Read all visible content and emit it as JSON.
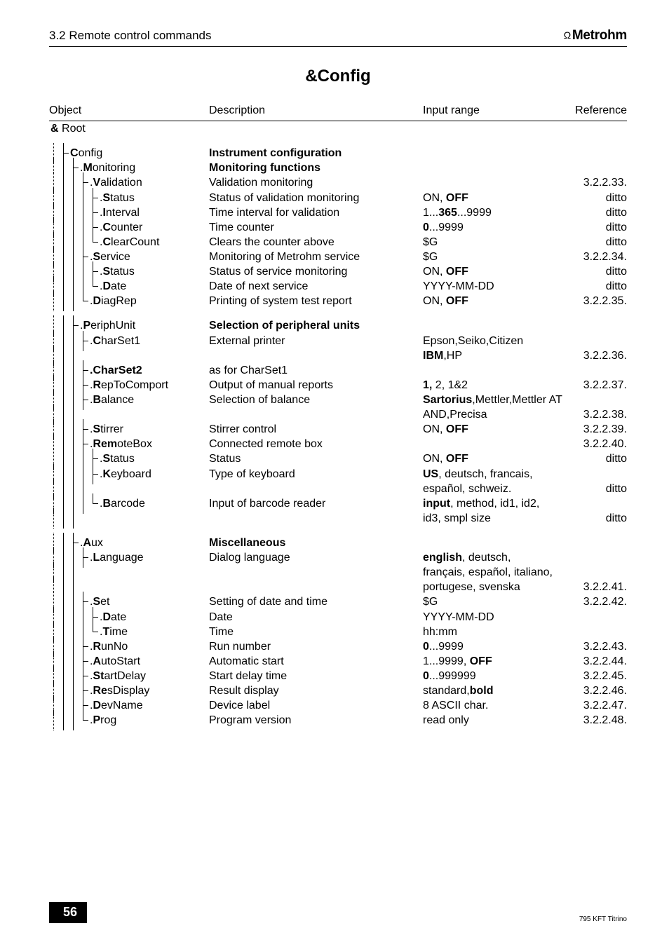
{
  "header": {
    "section": "3.2 Remote control commands",
    "brand_symbol": "Ω",
    "brand": "Metrohm"
  },
  "title": "&Config",
  "columns": {
    "object": "Object",
    "description": "Description",
    "input": "Input range",
    "reference": "Reference"
  },
  "rows": [
    {
      "type": "root",
      "object_html": "<b>&</b>  Root"
    },
    {
      "type": "gap"
    },
    {
      "tree": [
        "d",
        "t"
      ],
      "obj_html": "<b>C</b>onfig",
      "desc_html": "<b>Instrument configuration</b>"
    },
    {
      "tree": [
        "d",
        "v",
        "t"
      ],
      "obj_html": ".<b>M</b>onitoring",
      "desc_html": "<b>Monitoring functions</b>"
    },
    {
      "tree": [
        "d",
        "v",
        "v",
        "t"
      ],
      "obj_html": ".<b>V</b>alidation",
      "desc": "Validation monitoring",
      "ref": "3.2.2.33."
    },
    {
      "tree": [
        "d",
        "v",
        "v",
        "v",
        "t"
      ],
      "obj_html": ".<b>S</b>tatus",
      "desc": "Status of validation monitoring",
      "input_html": "ON, <b>OFF</b>",
      "ref": "ditto"
    },
    {
      "tree": [
        "d",
        "v",
        "v",
        "v",
        "t"
      ],
      "obj_html": ".<b>I</b>nterval",
      "desc": "Time interval for validation",
      "input_html": "1...<b>365</b>...9999",
      "ref": "ditto"
    },
    {
      "tree": [
        "d",
        "v",
        "v",
        "v",
        "t"
      ],
      "obj_html": ".<b>C</b>ounter",
      "desc": "Time counter",
      "input_html": "<b>0</b>...9999",
      "ref": "ditto"
    },
    {
      "tree": [
        "d",
        "v",
        "v",
        "v",
        "e"
      ],
      "obj_html": ".<b>C</b>learCount",
      "desc": "Clears the counter above",
      "input": "$G",
      "ref": "ditto"
    },
    {
      "tree": [
        "d",
        "v",
        "v",
        "t"
      ],
      "obj_html": ".<b>S</b>ervice",
      "desc": "Monitoring of Metrohm service",
      "input": "$G",
      "ref": "3.2.2.34."
    },
    {
      "tree": [
        "d",
        "v",
        "v",
        "v",
        "t"
      ],
      "obj_html": ".<b>S</b>tatus",
      "desc": "Status of service monitoring",
      "input_html": "ON, <b>OFF</b>",
      "ref": "ditto"
    },
    {
      "tree": [
        "d",
        "v",
        "v",
        "v",
        "e"
      ],
      "obj_html": ".<b>D</b>ate",
      "desc": "Date of next service",
      "input": "YYYY-MM-DD",
      "ref": "ditto"
    },
    {
      "tree": [
        "d",
        "v",
        "v",
        "e"
      ],
      "obj_html": ".<b>D</b>iagRep",
      "desc": "Printing of system test report",
      "input_html": "ON, <b>OFF</b>",
      "ref": "3.2.2.35."
    },
    {
      "type": "gap"
    },
    {
      "tree": [
        "d",
        "v",
        "t"
      ],
      "obj_html": ".<b>P</b>eriphUnit",
      "desc_html": "<b>Selection of peripheral units</b>"
    },
    {
      "tree": [
        "d",
        "v",
        "v",
        "t"
      ],
      "obj_html": ".<b>C</b>harSet1",
      "desc": "External printer",
      "input_html": "Epson,Seiko,Citizen"
    },
    {
      "tree": [
        "d",
        "v",
        "v",
        ""
      ],
      "obj_html": "",
      "input_html": "<b>IBM</b>,HP",
      "ref": "3.2.2.36."
    },
    {
      "tree": [
        "d",
        "v",
        "v",
        "t"
      ],
      "obj_html": "<b>.CharSet2</b>",
      "desc": "as for CharSet1"
    },
    {
      "tree": [
        "d",
        "v",
        "v",
        "t"
      ],
      "obj_html": ".<b>R</b>epToComport",
      "desc": "Output of manual reports",
      "input_html": "<b>1,</b> 2, 1&2",
      "ref": "3.2.2.37."
    },
    {
      "tree": [
        "d",
        "v",
        "v",
        "t"
      ],
      "obj_html": ".<b>B</b>alance",
      "desc": "Selection of balance",
      "input_html": "<b>Sartorius</b>,Mettler,Mettler AT"
    },
    {
      "tree": [
        "d",
        "v",
        "v",
        ""
      ],
      "obj_html": "",
      "input": "AND,Precisa",
      "ref": "3.2.2.38."
    },
    {
      "tree": [
        "d",
        "v",
        "v",
        "t"
      ],
      "obj_html": ".<b>S</b>tirrer",
      "desc": "Stirrer control",
      "input_html": "ON, <b>OFF</b>",
      "ref": "3.2.2.39."
    },
    {
      "tree": [
        "d",
        "v",
        "v",
        "t"
      ],
      "obj_html": ".<b>Rem</b>oteBox",
      "desc": "Connected remote box",
      "ref": "3.2.2.40."
    },
    {
      "tree": [
        "d",
        "v",
        "v",
        "v",
        "t"
      ],
      "obj_html": ".<b>S</b>tatus",
      "desc": "Status",
      "input_html": "ON, <b>OFF</b>",
      "ref": "ditto"
    },
    {
      "tree": [
        "d",
        "v",
        "v",
        "v",
        "t"
      ],
      "obj_html": ".<b>K</b>eyboard",
      "desc": "Type of keyboard",
      "input_html": "<b>US</b>, deutsch, francais,"
    },
    {
      "tree": [
        "d",
        "v",
        "v",
        "v",
        ""
      ],
      "obj_html": "",
      "input": "español, schweiz.",
      "ref": "ditto"
    },
    {
      "tree": [
        "d",
        "v",
        "v",
        "v",
        "e"
      ],
      "obj_html": ".<b>B</b>arcode",
      "desc": "Input of barcode reader",
      "input_html": "<b>input</b>, method, id1, id2,"
    },
    {
      "tree": [
        "d",
        "v",
        "v",
        ""
      ],
      "obj_html": "",
      "input": "id3, smpl size",
      "ref": "ditto"
    },
    {
      "type": "gap"
    },
    {
      "tree": [
        "d",
        "v",
        "t"
      ],
      "obj_html": ".<b>A</b>ux",
      "desc_html": "<b>Miscellaneous</b>"
    },
    {
      "tree": [
        "d",
        "v",
        "v",
        "t"
      ],
      "obj_html": ".<b>L</b>anguage",
      "desc": "Dialog language",
      "input_html": "<b>english</b>, deutsch,"
    },
    {
      "tree": [
        "d",
        "v",
        "v",
        ""
      ],
      "obj_html": "",
      "input": "français, español, italiano,"
    },
    {
      "tree": [
        "d",
        "v",
        "v",
        ""
      ],
      "obj_html": "",
      "input": "portugese, svenska",
      "ref": "3.2.2.41."
    },
    {
      "tree": [
        "d",
        "v",
        "v",
        "t"
      ],
      "obj_html": ".<b>S</b>et",
      "desc": "Setting of date and time",
      "input": "$G",
      "ref": "3.2.2.42."
    },
    {
      "tree": [
        "d",
        "v",
        "v",
        "v",
        "t"
      ],
      "obj_html": ".<b>D</b>ate",
      "desc": "Date",
      "input": "YYYY-MM-DD"
    },
    {
      "tree": [
        "d",
        "v",
        "v",
        "v",
        "e"
      ],
      "obj_html": ".<b>T</b>ime",
      "desc": "Time",
      "input": "hh:mm"
    },
    {
      "tree": [
        "d",
        "v",
        "v",
        "t"
      ],
      "obj_html": ".<b>R</b>unNo",
      "desc": "Run number",
      "input_html": "<b>0</b>...9999",
      "ref": "3.2.2.43."
    },
    {
      "tree": [
        "d",
        "v",
        "v",
        "t"
      ],
      "obj_html": ".<b>A</b>utoStart",
      "desc": "Automatic start",
      "input_html": "1...9999, <b>OFF</b>",
      "ref": "3.2.2.44."
    },
    {
      "tree": [
        "d",
        "v",
        "v",
        "t"
      ],
      "obj_html": ".<b>St</b>artDelay",
      "desc": "Start delay time",
      "input_html": "<b>0</b>...999999",
      "ref": "3.2.2.45."
    },
    {
      "tree": [
        "d",
        "v",
        "v",
        "t"
      ],
      "obj_html": ".<b>Re</b>sDisplay",
      "desc": "Result display",
      "input_html": "standard,<b>bold</b>",
      "ref": "3.2.2.46."
    },
    {
      "tree": [
        "d",
        "v",
        "v",
        "t"
      ],
      "obj_html": ".<b>D</b>evName",
      "desc": "Device label",
      "input": "8 ASCII char.",
      "ref": "3.2.2.47."
    },
    {
      "tree": [
        "d",
        "v",
        "v",
        "e"
      ],
      "obj_html": ".<b>P</b>rog",
      "desc": "Program version",
      "input": "read only",
      "ref": "3.2.2.48."
    }
  ],
  "footer": {
    "page_number": "56",
    "footnote": "795 KFT Titrino"
  }
}
